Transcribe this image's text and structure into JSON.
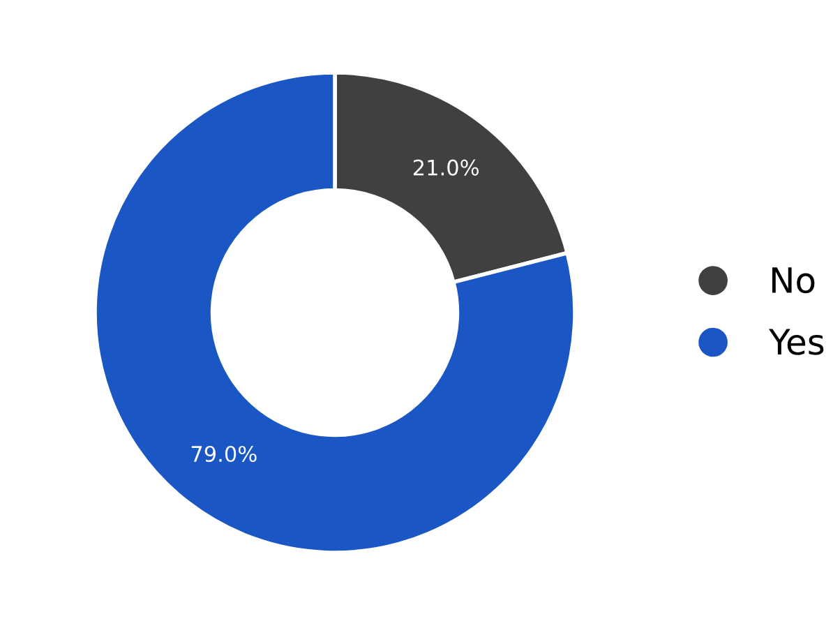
{
  "chart_data": {
    "type": "donut",
    "categories": [
      "No",
      "Yes"
    ],
    "values": [
      21.0,
      79.0
    ],
    "colors": [
      "#404040",
      "#1a56c4"
    ],
    "value_labels": [
      "21.0%",
      "79.0%"
    ],
    "legend": "right"
  }
}
